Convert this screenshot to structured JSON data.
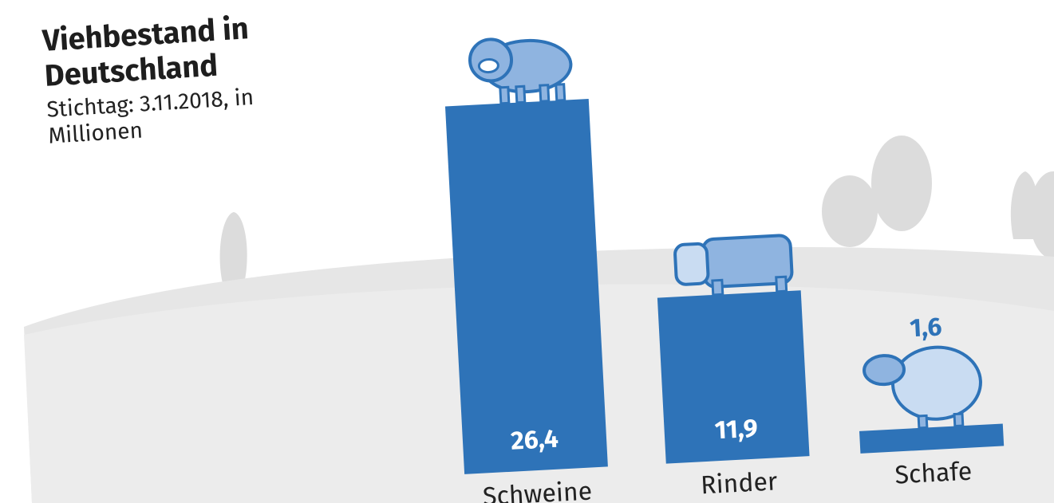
{
  "chart_data": {
    "type": "bar",
    "title": "Viehbestand in Deutschland",
    "subtitle": "Stichtag: 3.11.2018, in Millionen",
    "categories": [
      "Schweine",
      "Rinder",
      "Schafe"
    ],
    "values": [
      26.4,
      11.9,
      1.6
    ],
    "value_labels": [
      "26,4",
      "11,9",
      "1,6"
    ],
    "color": "#2e73b8"
  }
}
